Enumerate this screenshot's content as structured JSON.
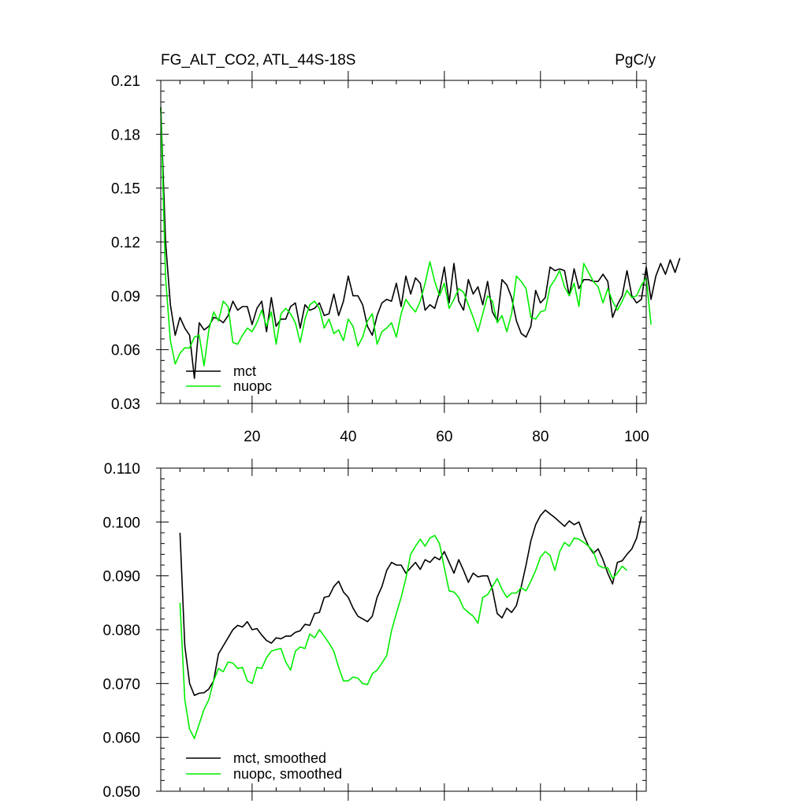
{
  "chart_data": [
    {
      "type": "line",
      "title": "FG_ALT_CO2, ATL_44S-18S",
      "units": "PgC/y",
      "xlim": [
        1,
        102
      ],
      "ylim": [
        0.03,
        0.21
      ],
      "xticks": [
        20,
        40,
        60,
        80,
        100
      ],
      "xtick_labels": [
        "20",
        "40",
        "60",
        "80",
        "100"
      ],
      "yticks": [
        0.03,
        0.06,
        0.09,
        0.12,
        0.15,
        0.18,
        0.21
      ],
      "ytick_labels": [
        "0.03",
        "0.06",
        "0.09",
        "0.12",
        "0.15",
        "0.18",
        "0.21"
      ],
      "grid": false,
      "legend_position": "bottom-left",
      "series": [
        {
          "name": "mct",
          "color": "#000000",
          "values": [
            0.195,
            0.12,
            0.085,
            0.068,
            0.078,
            0.072,
            0.068,
            0.044,
            0.075,
            0.071,
            0.073,
            0.078,
            0.077,
            0.075,
            0.079,
            0.087,
            0.082,
            0.084,
            0.084,
            0.074,
            0.083,
            0.087,
            0.07,
            0.089,
            0.073,
            0.077,
            0.077,
            0.084,
            0.086,
            0.072,
            0.085,
            0.082,
            0.083,
            0.086,
            0.079,
            0.08,
            0.091,
            0.079,
            0.087,
            0.101,
            0.09,
            0.09,
            0.085,
            0.073,
            0.068,
            0.079,
            0.086,
            0.088,
            0.087,
            0.097,
            0.084,
            0.101,
            0.091,
            0.1,
            0.097,
            0.082,
            0.085,
            0.083,
            0.092,
            0.106,
            0.086,
            0.108,
            0.087,
            0.082,
            0.099,
            0.091,
            0.095,
            0.085,
            0.098,
            0.081,
            0.076,
            0.099,
            0.096,
            0.089,
            0.076,
            0.069,
            0.067,
            0.073,
            0.093,
            0.086,
            0.089,
            0.106,
            0.104,
            0.105,
            0.104,
            0.09,
            0.105,
            0.094,
            0.099,
            0.099,
            0.098,
            0.098,
            0.102,
            0.098,
            0.078,
            0.085,
            0.09,
            0.104,
            0.09,
            0.086,
            0.088,
            0.106,
            0.088,
            0.101,
            0.108,
            0.102,
            0.11,
            0.103,
            0.111
          ],
          "x_start": 1
        },
        {
          "name": "nuopc",
          "color": "#00ee00",
          "values": [
            0.195,
            0.1,
            0.065,
            0.052,
            0.058,
            0.061,
            0.061,
            0.067,
            0.068,
            0.051,
            0.071,
            0.081,
            0.076,
            0.087,
            0.084,
            0.064,
            0.063,
            0.068,
            0.072,
            0.07,
            0.075,
            0.082,
            0.073,
            0.081,
            0.063,
            0.08,
            0.083,
            0.08,
            0.075,
            0.064,
            0.077,
            0.085,
            0.087,
            0.083,
            0.072,
            0.077,
            0.069,
            0.071,
            0.065,
            0.077,
            0.073,
            0.062,
            0.067,
            0.076,
            0.08,
            0.063,
            0.07,
            0.072,
            0.075,
            0.067,
            0.08,
            0.088,
            0.084,
            0.081,
            0.087,
            0.097,
            0.109,
            0.098,
            0.09,
            0.097,
            0.083,
            0.088,
            0.094,
            0.092,
            0.085,
            0.078,
            0.07,
            0.08,
            0.09,
            0.087,
            0.075,
            0.079,
            0.07,
            0.08,
            0.101,
            0.098,
            0.094,
            0.078,
            0.077,
            0.081,
            0.082,
            0.095,
            0.099,
            0.104,
            0.095,
            0.09,
            0.097,
            0.084,
            0.108,
            0.103,
            0.098,
            0.095,
            0.086,
            0.094,
            0.087,
            0.082,
            0.087,
            0.093,
            0.089,
            0.09,
            0.096,
            0.1,
            0.074
          ],
          "x_start": 1
        }
      ],
      "legend": [
        "mct",
        "nuopc"
      ]
    },
    {
      "type": "line",
      "title": "",
      "xlim": [
        1,
        102
      ],
      "ylim": [
        0.05,
        0.11
      ],
      "xticks": [
        20,
        40,
        60,
        80,
        100
      ],
      "xtick_labels": [],
      "yticks": [
        0.05,
        0.06,
        0.07,
        0.08,
        0.09,
        0.1,
        0.11
      ],
      "ytick_labels": [
        "0.050",
        "0.060",
        "0.070",
        "0.080",
        "0.090",
        "0.100",
        "0.110"
      ],
      "grid": false,
      "legend_position": "bottom-left",
      "series": [
        {
          "name": "mct, smoothed",
          "color": "#000000",
          "x_start": 5,
          "values": [
            0.098,
            0.077,
            0.07,
            0.0678,
            0.0682,
            0.0683,
            0.069,
            0.0705,
            0.0755,
            0.077,
            0.0785,
            0.08,
            0.0808,
            0.0805,
            0.0815,
            0.08,
            0.0802,
            0.079,
            0.078,
            0.0775,
            0.0785,
            0.0783,
            0.0788,
            0.0788,
            0.0795,
            0.0798,
            0.081,
            0.0808,
            0.083,
            0.0832,
            0.086,
            0.0862,
            0.088,
            0.089,
            0.087,
            0.086,
            0.084,
            0.0825,
            0.082,
            0.0815,
            0.0825,
            0.086,
            0.088,
            0.091,
            0.0925,
            0.092,
            0.092,
            0.0905,
            0.0915,
            0.0925,
            0.0912,
            0.093,
            0.0925,
            0.0935,
            0.093,
            0.0945,
            0.0925,
            0.0905,
            0.093,
            0.091,
            0.0888,
            0.0905,
            0.0898,
            0.09,
            0.09,
            0.0875,
            0.083,
            0.0822,
            0.084,
            0.0832,
            0.0845,
            0.088,
            0.092,
            0.0965,
            0.0995,
            0.1012,
            0.1022,
            0.1015,
            0.1008,
            0.1,
            0.0992,
            0.1002,
            0.0995,
            0.1,
            0.0975,
            0.0955,
            0.0942,
            0.095,
            0.093,
            0.0905,
            0.0885,
            0.0925,
            0.0928,
            0.094,
            0.095,
            0.097,
            0.101
          ]
        },
        {
          "name": "nuopc, smoothed",
          "color": "#00ee00",
          "x_start": 5,
          "values": [
            0.085,
            0.067,
            0.0615,
            0.0598,
            0.0625,
            0.0652,
            0.067,
            0.0705,
            0.0728,
            0.0722,
            0.074,
            0.0738,
            0.0728,
            0.073,
            0.0705,
            0.07,
            0.073,
            0.0728,
            0.0748,
            0.076,
            0.0763,
            0.0765,
            0.074,
            0.0725,
            0.076,
            0.0768,
            0.0765,
            0.0792,
            0.0785,
            0.08,
            0.0788,
            0.0775,
            0.076,
            0.073,
            0.0705,
            0.0705,
            0.0712,
            0.071,
            0.07,
            0.0698,
            0.0718,
            0.0725,
            0.0738,
            0.0752,
            0.0798,
            0.083,
            0.086,
            0.0895,
            0.094,
            0.0955,
            0.0968,
            0.0955,
            0.097,
            0.0975,
            0.096,
            0.0915,
            0.0872,
            0.087,
            0.086,
            0.084,
            0.0832,
            0.0825,
            0.0812,
            0.086,
            0.0865,
            0.088,
            0.0895,
            0.0875,
            0.086,
            0.0868,
            0.0868,
            0.0878,
            0.0872,
            0.089,
            0.091,
            0.0935,
            0.0945,
            0.0938,
            0.091,
            0.0945,
            0.0962,
            0.0955,
            0.097,
            0.0968,
            0.0962,
            0.0955,
            0.0945,
            0.092,
            0.0915,
            0.0915,
            0.0895,
            0.0905,
            0.0918,
            0.091
          ]
        }
      ],
      "legend": [
        "mct, smoothed",
        "nuopc, smoothed"
      ]
    }
  ]
}
